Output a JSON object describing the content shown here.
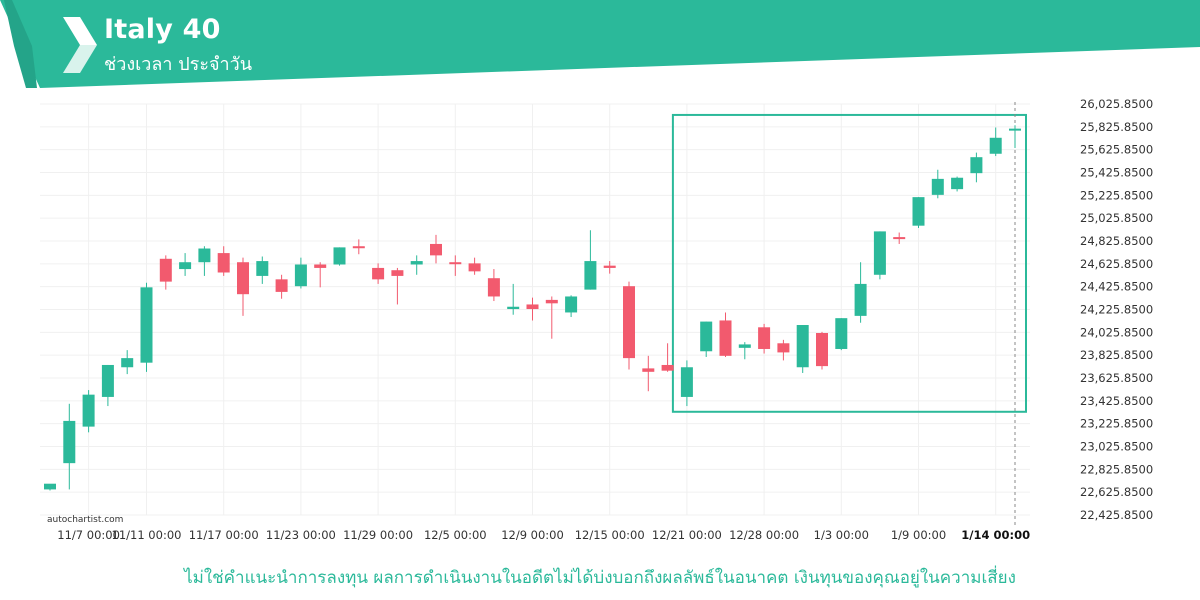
{
  "header": {
    "title": "Italy 40",
    "subtitle": "ช่วงเวลา ประจำวัน"
  },
  "watermark": "autochartist.com",
  "disclaimer": "ไม่ใช่คำแนะนำการลงทุน ผลการดำเนินงานในอดีตไม่ได้บ่งบอกถึงผลลัพธ์ในอนาคต เงินทุนของคุณอยู่ในความเสี่ยง",
  "colors": {
    "brand": "#2bb99a",
    "up": "#2bb99a",
    "down": "#f25a6e",
    "grid": "#f0f0f0",
    "text": "#333333"
  },
  "chart_data": {
    "type": "candlestick",
    "instrument": "Italy 40",
    "ylim": [
      22425.85,
      26025.85
    ],
    "yticks": [
      "26,025.8500",
      "25,825.8500",
      "25,625.8500",
      "25,425.8500",
      "25,225.8500",
      "25,025.8500",
      "24,825.8500",
      "24,625.8500",
      "24,425.8500",
      "24,225.8500",
      "24,025.8500",
      "23,825.8500",
      "23,625.8500",
      "23,425.8500",
      "23,225.8500",
      "23,025.8500",
      "22,825.8500",
      "22,625.8500",
      "22,425.8500"
    ],
    "xticks": [
      {
        "label": "11/7 00:00",
        "index": 2
      },
      {
        "label": "11/11 00:00",
        "index": 5
      },
      {
        "label": "11/17 00:00",
        "index": 9
      },
      {
        "label": "11/23 00:00",
        "index": 13
      },
      {
        "label": "11/29 00:00",
        "index": 17
      },
      {
        "label": "12/5 00:00",
        "index": 21
      },
      {
        "label": "12/9 00:00",
        "index": 25
      },
      {
        "label": "12/15 00:00",
        "index": 29
      },
      {
        "label": "12/21 00:00",
        "index": 33
      },
      {
        "label": "12/28 00:00",
        "index": 37
      },
      {
        "label": "1/3 00:00",
        "index": 41
      },
      {
        "label": "1/9 00:00",
        "index": 45
      },
      {
        "label": "1/14 00:00",
        "index": 49,
        "bold": true
      }
    ],
    "candles": [
      {
        "o": 22650,
        "h": 22680,
        "c": 22700,
        "l": 22640
      },
      {
        "o": 22880,
        "h": 23400,
        "c": 23250,
        "l": 22650
      },
      {
        "o": 23200,
        "h": 23520,
        "c": 23480,
        "l": 23150
      },
      {
        "o": 23460,
        "h": 23740,
        "c": 23740,
        "l": 23380
      },
      {
        "o": 23720,
        "h": 23870,
        "c": 23800,
        "l": 23660
      },
      {
        "o": 23760,
        "h": 24460,
        "c": 24420,
        "l": 23680
      },
      {
        "o": 24670,
        "h": 24700,
        "c": 24470,
        "l": 24400
      },
      {
        "o": 24580,
        "h": 24720,
        "c": 24640,
        "l": 24520
      },
      {
        "o": 24640,
        "h": 24780,
        "c": 24760,
        "l": 24520
      },
      {
        "o": 24720,
        "h": 24780,
        "c": 24550,
        "l": 24520
      },
      {
        "o": 24640,
        "h": 24680,
        "c": 24360,
        "l": 24170
      },
      {
        "o": 24520,
        "h": 24690,
        "c": 24650,
        "l": 24450
      },
      {
        "o": 24490,
        "h": 24530,
        "c": 24380,
        "l": 24320
      },
      {
        "o": 24430,
        "h": 24680,
        "c": 24620,
        "l": 24410
      },
      {
        "o": 24620,
        "h": 24640,
        "c": 24590,
        "l": 24420
      },
      {
        "o": 24620,
        "h": 24770,
        "c": 24770,
        "l": 24610
      },
      {
        "o": 24780,
        "h": 24840,
        "c": 24770,
        "l": 24710
      },
      {
        "o": 24590,
        "h": 24630,
        "c": 24490,
        "l": 24450
      },
      {
        "o": 24570,
        "h": 24590,
        "c": 24520,
        "l": 24270
      },
      {
        "o": 24620,
        "h": 24700,
        "c": 24650,
        "l": 24530
      },
      {
        "o": 24800,
        "h": 24880,
        "c": 24700,
        "l": 24630
      },
      {
        "o": 24640,
        "h": 24700,
        "c": 24630,
        "l": 24520
      },
      {
        "o": 24630,
        "h": 24680,
        "c": 24560,
        "l": 24530
      },
      {
        "o": 24500,
        "h": 24580,
        "c": 24340,
        "l": 24300
      },
      {
        "o": 24230,
        "h": 24450,
        "c": 24250,
        "l": 24180
      },
      {
        "o": 24270,
        "h": 24330,
        "c": 24230,
        "l": 24130
      },
      {
        "o": 24310,
        "h": 24340,
        "c": 24280,
        "l": 23970
      },
      {
        "o": 24200,
        "h": 24350,
        "c": 24340,
        "l": 24160
      },
      {
        "o": 24400,
        "h": 24920,
        "c": 24650,
        "l": 24400
      },
      {
        "o": 24610,
        "h": 24650,
        "c": 24590,
        "l": 24540
      },
      {
        "o": 24430,
        "h": 24470,
        "c": 23800,
        "l": 23700
      },
      {
        "o": 23710,
        "h": 23820,
        "c": 23680,
        "l": 23510
      },
      {
        "o": 23740,
        "h": 23930,
        "c": 23690,
        "l": 23680
      },
      {
        "o": 23460,
        "h": 23780,
        "c": 23720,
        "l": 23380
      },
      {
        "o": 23860,
        "h": 24120,
        "c": 24120,
        "l": 23810
      },
      {
        "o": 24130,
        "h": 24200,
        "c": 23820,
        "l": 23810
      },
      {
        "o": 23890,
        "h": 23940,
        "c": 23920,
        "l": 23790
      },
      {
        "o": 24070,
        "h": 24100,
        "c": 23880,
        "l": 23840
      },
      {
        "o": 23930,
        "h": 23960,
        "c": 23850,
        "l": 23780
      },
      {
        "o": 23720,
        "h": 24090,
        "c": 24090,
        "l": 23670
      },
      {
        "o": 24020,
        "h": 24030,
        "c": 23730,
        "l": 23700
      },
      {
        "o": 23880,
        "h": 24150,
        "c": 24150,
        "l": 23870
      },
      {
        "o": 24170,
        "h": 24640,
        "c": 24450,
        "l": 24110
      },
      {
        "o": 24530,
        "h": 24910,
        "c": 24910,
        "l": 24490
      },
      {
        "o": 24860,
        "h": 24900,
        "c": 24850,
        "l": 24800
      },
      {
        "o": 24960,
        "h": 25210,
        "c": 25210,
        "l": 24940
      },
      {
        "o": 25230,
        "h": 25450,
        "c": 25370,
        "l": 25200
      },
      {
        "o": 25280,
        "h": 25390,
        "c": 25380,
        "l": 25260
      },
      {
        "o": 25420,
        "h": 25600,
        "c": 25560,
        "l": 25340
      },
      {
        "o": 25590,
        "h": 25820,
        "c": 25730,
        "l": 25570
      },
      {
        "o": 25810,
        "h": 25840,
        "c": 25810,
        "l": 25640
      }
    ],
    "pattern_box": {
      "start_index": 33,
      "end_index": 50,
      "high": 25930,
      "low": 23330
    },
    "current_marker_index": 50
  }
}
